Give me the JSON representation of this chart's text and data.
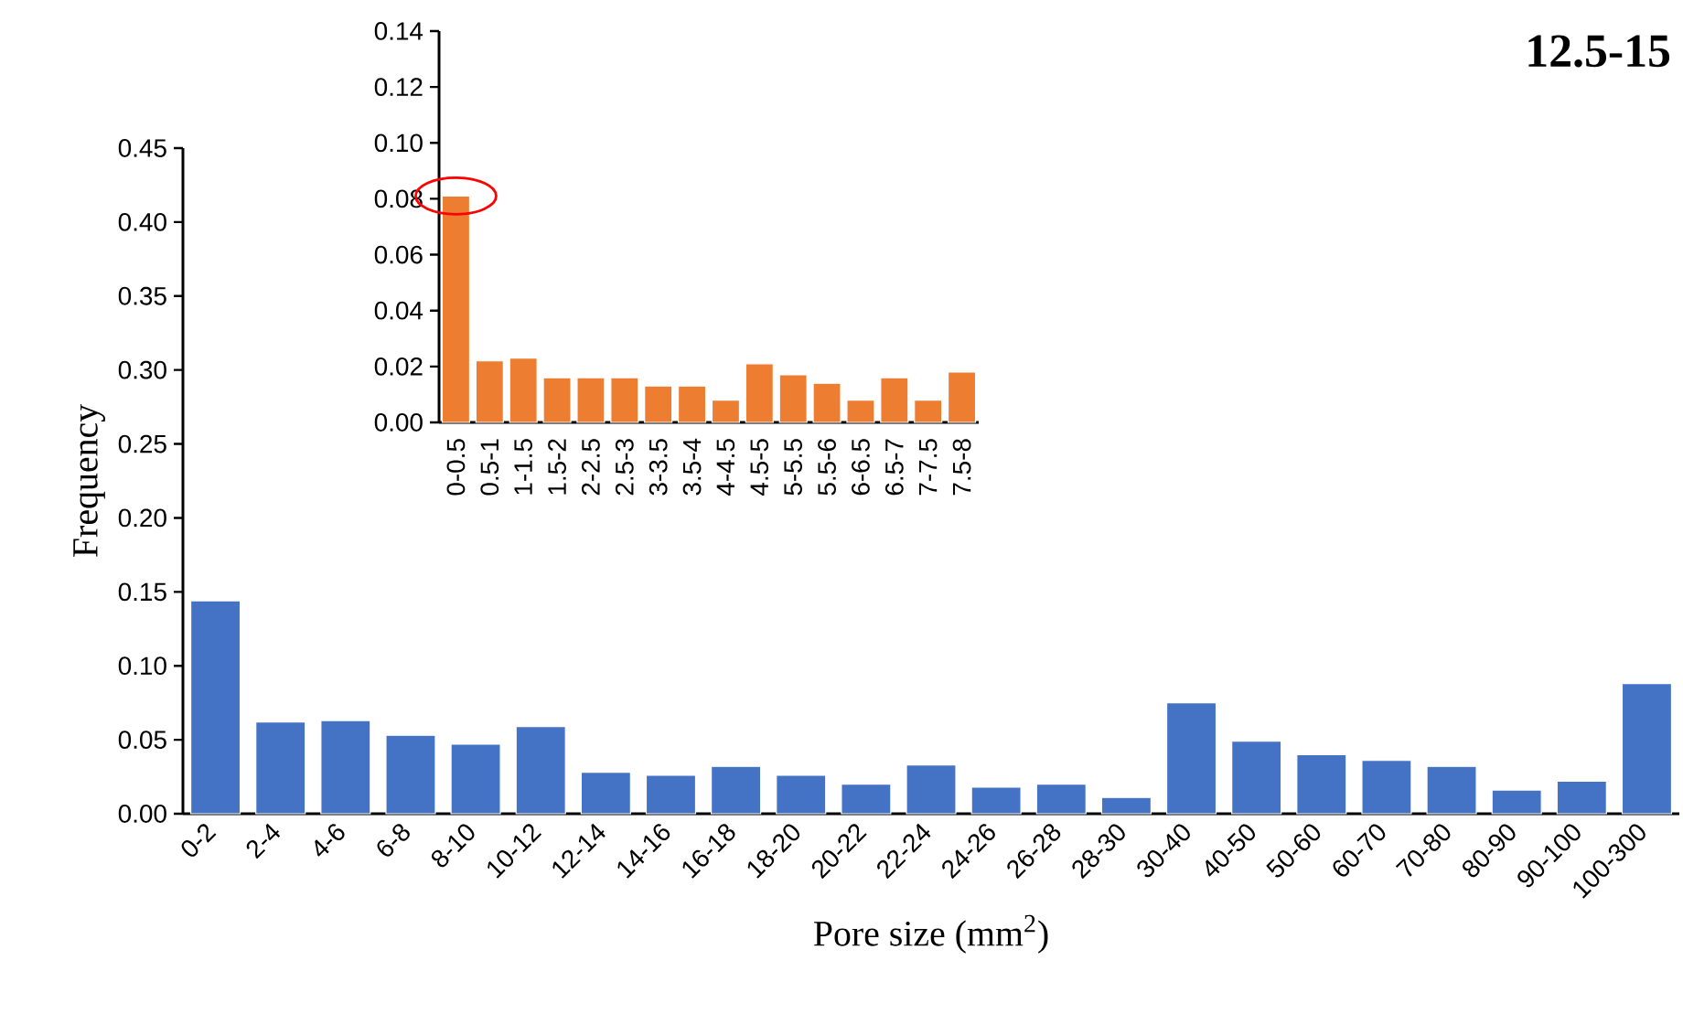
{
  "chart_data": [
    {
      "type": "bar",
      "title": "12.5-15",
      "xlabel": "Pore size (mm$^{2}$)",
      "ylabel": "Frequency",
      "categories": [
        "0-2",
        "2-4",
        "4-6",
        "6-8",
        "8-10",
        "10-12",
        "12-14",
        "14-16",
        "16-18",
        "18-20",
        "20-22",
        "22-24",
        "24-26",
        "26-28",
        "28-30",
        "30-40",
        "40-50",
        "50-60",
        "60-70",
        "70-80",
        "80-90",
        "90-100",
        "100-300"
      ],
      "values": [
        0.144,
        0.062,
        0.063,
        0.053,
        0.047,
        0.059,
        0.028,
        0.026,
        0.032,
        0.026,
        0.02,
        0.033,
        0.018,
        0.02,
        0.011,
        0.075,
        0.049,
        0.04,
        0.036,
        0.032,
        0.016,
        0.022,
        0.088
      ],
      "color": "#4472c4",
      "ylim": [
        0,
        0.45
      ],
      "yticks": [
        {
          "value": 0,
          "label": "0.00"
        },
        {
          "value": 0.05,
          "label": "0.05"
        },
        {
          "value": 0.1,
          "label": "0.10"
        },
        {
          "value": 0.15,
          "label": "0.15"
        },
        {
          "value": 0.2,
          "label": "0.20"
        },
        {
          "value": 0.25,
          "label": "0.25"
        },
        {
          "value": 0.3,
          "label": "0.30"
        },
        {
          "value": 0.35,
          "label": "0.35"
        },
        {
          "value": 0.4,
          "label": "0.40"
        },
        {
          "value": 0.45,
          "label": "0.45"
        }
      ],
      "grid": false
    },
    {
      "type": "bar",
      "categories": [
        "0-0.5",
        "0.5-1",
        "1-1.5",
        "1.5-2",
        "2-2.5",
        "2.5-3",
        "3-3.5",
        "3.5-4",
        "4-4.5",
        "4.5-5",
        "5-5.5",
        "5.5-6",
        "6-6.5",
        "6.5-7",
        "7-7.5",
        "7.5-8"
      ],
      "values": [
        0.081,
        0.022,
        0.023,
        0.016,
        0.016,
        0.016,
        0.013,
        0.013,
        0.008,
        0.021,
        0.017,
        0.014,
        0.008,
        0.016,
        0.008,
        0.018
      ],
      "color": "#ed7d31",
      "ylim": [
        0,
        0.14
      ],
      "yticks": [
        {
          "value": 0,
          "label": "0.00"
        },
        {
          "value": 0.02,
          "label": "0.02"
        },
        {
          "value": 0.04,
          "label": "0.04"
        },
        {
          "value": 0.06,
          "label": "0.06"
        },
        {
          "value": 0.08,
          "label": "0.08"
        },
        {
          "value": 0.1,
          "label": "0.10"
        },
        {
          "value": 0.12,
          "label": "0.12"
        },
        {
          "value": 0.14,
          "label": "0.14"
        }
      ],
      "grid": false
    }
  ]
}
